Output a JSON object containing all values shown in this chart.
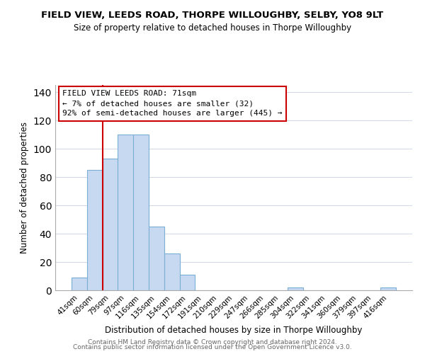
{
  "title1": "FIELD VIEW, LEEDS ROAD, THORPE WILLOUGHBY, SELBY, YO8 9LT",
  "title2": "Size of property relative to detached houses in Thorpe Willoughby",
  "xlabel": "Distribution of detached houses by size in Thorpe Willoughby",
  "ylabel": "Number of detached properties",
  "bar_labels": [
    "41sqm",
    "60sqm",
    "79sqm",
    "97sqm",
    "116sqm",
    "135sqm",
    "154sqm",
    "172sqm",
    "191sqm",
    "210sqm",
    "229sqm",
    "247sqm",
    "266sqm",
    "285sqm",
    "304sqm",
    "322sqm",
    "341sqm",
    "360sqm",
    "379sqm",
    "397sqm",
    "416sqm"
  ],
  "bar_heights": [
    9,
    85,
    93,
    110,
    110,
    45,
    26,
    11,
    0,
    0,
    0,
    0,
    0,
    0,
    2,
    0,
    0,
    0,
    0,
    0,
    2
  ],
  "bar_color": "#c6d9f0",
  "bar_edge_color": "#7bafd4",
  "vline_color": "#cc0000",
  "annotation_title": "FIELD VIEW LEEDS ROAD: 71sqm",
  "annotation_line1": "← 7% of detached houses are smaller (32)",
  "annotation_line2": "92% of semi-detached houses are larger (445) →",
  "annotation_box_color": "#ffffff",
  "annotation_box_edge": "#cc0000",
  "ylim": [
    0,
    145
  ],
  "yticks": [
    0,
    20,
    40,
    60,
    80,
    100,
    120,
    140
  ],
  "footer1": "Contains HM Land Registry data © Crown copyright and database right 2024.",
  "footer2": "Contains public sector information licensed under the Open Government Licence v3.0."
}
